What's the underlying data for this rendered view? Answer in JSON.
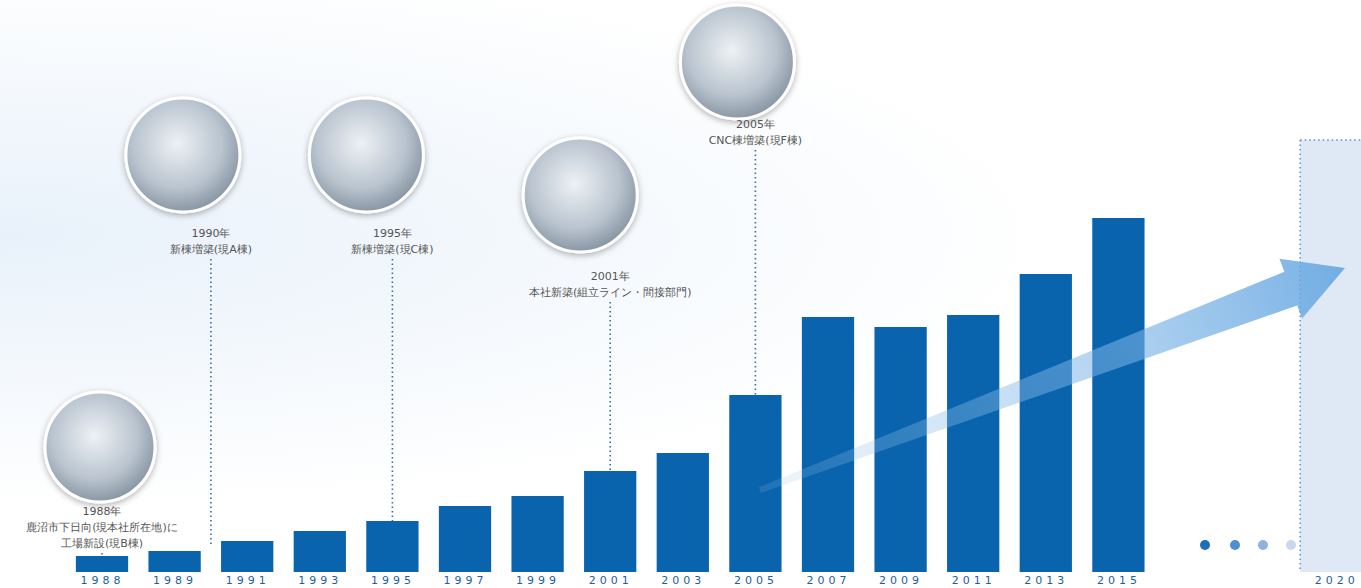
{
  "chart_data": {
    "type": "bar",
    "categories": [
      "1988",
      "1989",
      "1991",
      "1993",
      "1995",
      "1997",
      "1999",
      "2001",
      "2003",
      "2005",
      "2007",
      "2009",
      "2011",
      "2013",
      "2015",
      null,
      null,
      "2020"
    ],
    "values": [
      16,
      21,
      31,
      41,
      51,
      66,
      76,
      101,
      119,
      177,
      255,
      245,
      257,
      298,
      354,
      null,
      null,
      null
    ],
    "color": "#0a64ad",
    "ylim": [
      0,
      370
    ],
    "tick_labels": "x",
    "grid": false,
    "data_labels": false,
    "annotations": [
      {
        "x": 1988,
        "year": "1988年",
        "text": [
          "鹿沼市下日向(現本社所在地)に",
          "工場新設(現B棟)"
        ]
      },
      {
        "x": 1990,
        "year": "1990年",
        "text": [
          "新棟増築(現A棟)"
        ]
      },
      {
        "x": 1995,
        "year": "1995年",
        "text": [
          "新棟増築(現C棟)"
        ]
      },
      {
        "x": 2001,
        "year": "2001年",
        "text": [
          "本社新築(組立ライン・間接部門)"
        ]
      },
      {
        "x": 2005,
        "year": "2005年",
        "text": [
          "CNC棟増築(現F棟)"
        ]
      }
    ]
  }
}
